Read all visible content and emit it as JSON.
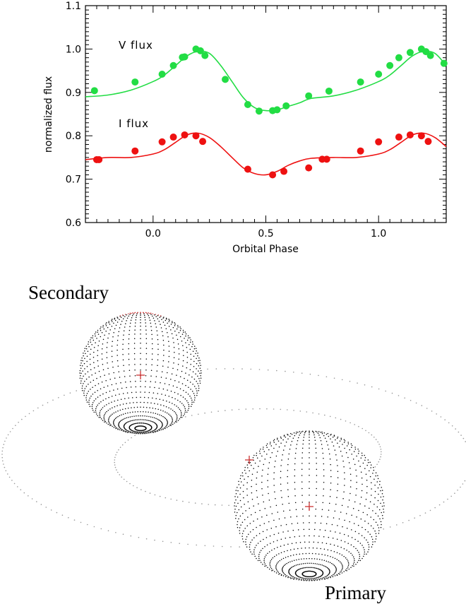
{
  "chart_data": {
    "type": "scatter",
    "xlabel": "Orbital Phase",
    "ylabel": "normalized flux",
    "xlim": [
      -0.3,
      1.3
    ],
    "ylim": [
      0.6,
      1.1
    ],
    "x_ticks": [
      {
        "v": 0.0,
        "label": "0.0"
      },
      {
        "v": 0.5,
        "label": "0.5"
      },
      {
        "v": 1.0,
        "label": "1.0"
      }
    ],
    "y_ticks": [
      {
        "v": 0.6,
        "label": "0.6"
      },
      {
        "v": 0.7,
        "label": "0.7"
      },
      {
        "v": 0.8,
        "label": "0.8"
      },
      {
        "v": 0.9,
        "label": "0.9"
      },
      {
        "v": 1.0,
        "label": "1.0"
      },
      {
        "v": 1.1,
        "label": "1.1"
      }
    ],
    "series": [
      {
        "name": "V flux",
        "color": "#22dd44",
        "points": [
          [
            -0.26,
            0.904
          ],
          [
            -0.08,
            0.924
          ],
          [
            0.04,
            0.942
          ],
          [
            0.09,
            0.962
          ],
          [
            0.13,
            0.981
          ],
          [
            0.14,
            0.982
          ],
          [
            0.19,
            1.0
          ],
          [
            0.21,
            0.996
          ],
          [
            0.23,
            0.985
          ],
          [
            0.32,
            0.93
          ],
          [
            0.42,
            0.872
          ],
          [
            0.47,
            0.857
          ],
          [
            0.53,
            0.858
          ],
          [
            0.55,
            0.86
          ],
          [
            0.59,
            0.869
          ],
          [
            0.69,
            0.892
          ],
          [
            0.78,
            0.903
          ],
          [
            0.92,
            0.924
          ],
          [
            1.0,
            0.942
          ],
          [
            1.05,
            0.962
          ],
          [
            1.09,
            0.98
          ],
          [
            1.14,
            0.992
          ],
          [
            1.19,
            1.0
          ],
          [
            1.21,
            0.994
          ],
          [
            1.23,
            0.985
          ],
          [
            1.29,
            0.967
          ]
        ],
        "fit": [
          [
            -0.3,
            0.89
          ],
          [
            -0.2,
            0.894
          ],
          [
            -0.1,
            0.905
          ],
          [
            0.0,
            0.925
          ],
          [
            0.05,
            0.94
          ],
          [
            0.1,
            0.962
          ],
          [
            0.15,
            0.984
          ],
          [
            0.2,
            0.995
          ],
          [
            0.25,
            0.99
          ],
          [
            0.3,
            0.962
          ],
          [
            0.35,
            0.925
          ],
          [
            0.4,
            0.888
          ],
          [
            0.45,
            0.865
          ],
          [
            0.5,
            0.858
          ],
          [
            0.55,
            0.86
          ],
          [
            0.6,
            0.868
          ],
          [
            0.65,
            0.876
          ],
          [
            0.7,
            0.886
          ],
          [
            0.8,
            0.892
          ],
          [
            0.9,
            0.905
          ],
          [
            1.0,
            0.925
          ],
          [
            1.05,
            0.94
          ],
          [
            1.1,
            0.962
          ],
          [
            1.15,
            0.984
          ],
          [
            1.2,
            0.995
          ],
          [
            1.25,
            0.99
          ],
          [
            1.3,
            0.962
          ]
        ]
      },
      {
        "name": "I flux",
        "color": "#ee1111",
        "points": [
          [
            -0.25,
            0.745
          ],
          [
            -0.24,
            0.745
          ],
          [
            -0.08,
            0.765
          ],
          [
            0.04,
            0.786
          ],
          [
            0.09,
            0.797
          ],
          [
            0.14,
            0.802
          ],
          [
            0.19,
            0.8
          ],
          [
            0.22,
            0.787
          ],
          [
            0.42,
            0.723
          ],
          [
            0.53,
            0.71
          ],
          [
            0.58,
            0.718
          ],
          [
            0.69,
            0.726
          ],
          [
            0.75,
            0.746
          ],
          [
            0.77,
            0.746
          ],
          [
            0.92,
            0.765
          ],
          [
            1.0,
            0.786
          ],
          [
            1.09,
            0.797
          ],
          [
            1.14,
            0.802
          ],
          [
            1.19,
            0.8
          ],
          [
            1.22,
            0.787
          ]
        ],
        "fit": [
          [
            -0.3,
            0.745
          ],
          [
            -0.2,
            0.75
          ],
          [
            -0.1,
            0.75
          ],
          [
            0.0,
            0.758
          ],
          [
            0.05,
            0.768
          ],
          [
            0.1,
            0.785
          ],
          [
            0.15,
            0.802
          ],
          [
            0.2,
            0.806
          ],
          [
            0.25,
            0.796
          ],
          [
            0.3,
            0.775
          ],
          [
            0.35,
            0.75
          ],
          [
            0.4,
            0.726
          ],
          [
            0.45,
            0.713
          ],
          [
            0.5,
            0.71
          ],
          [
            0.55,
            0.718
          ],
          [
            0.6,
            0.732
          ],
          [
            0.65,
            0.742
          ],
          [
            0.7,
            0.748
          ],
          [
            0.8,
            0.75
          ],
          [
            0.9,
            0.75
          ],
          [
            1.0,
            0.758
          ],
          [
            1.05,
            0.768
          ],
          [
            1.1,
            0.785
          ],
          [
            1.15,
            0.802
          ],
          [
            1.2,
            0.806
          ],
          [
            1.25,
            0.796
          ],
          [
            1.3,
            0.775
          ]
        ]
      }
    ]
  },
  "diagram": {
    "secondary_label": "Secondary",
    "primary_label": "Primary",
    "dot_color": "#000000",
    "spot_color": "#cc3333",
    "orbit_color": "#999999"
  }
}
